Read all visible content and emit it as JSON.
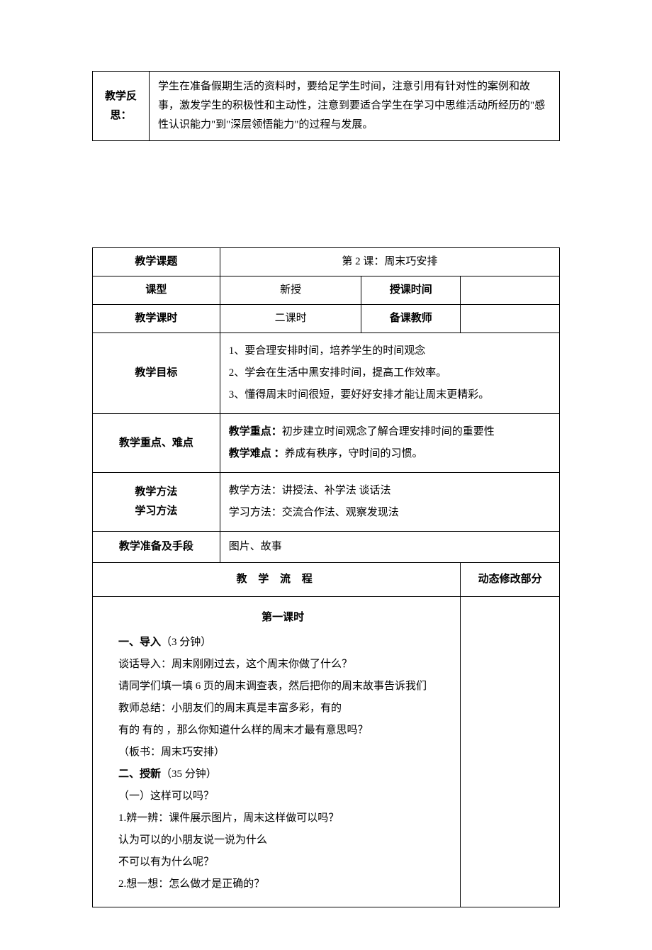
{
  "topTable": {
    "label": "教学反思：",
    "content": "学生在准备假期生活的资料时，要给足学生时间，注意引用有针对性的案例和故事，激发学生的积极性和主动性，注意到要适合学生在学习中思维活动所经历的\"感性认识能力\"到\"深层领悟能力\"的过程与发展。"
  },
  "mainTable": {
    "r1": {
      "label": "教学课题",
      "value": "第 2 课：周末巧安排"
    },
    "r2": {
      "label": "课型",
      "v1": "新授",
      "label2": "授课时间",
      "v2": ""
    },
    "r3": {
      "label": "教学课时",
      "v1": "二课时",
      "label2": "备课教师",
      "v2": ""
    },
    "goals": {
      "label": "教学目标",
      "l1": "1、要合理安排时间，培养学生的时间观念",
      "l2": "2、学会在生活中黑安排时间，提高工作效率。",
      "l3": "3、懂得周末时间很短，要好好安排才能让周末更精彩。"
    },
    "focus": {
      "label": "教学重点、难点",
      "l1a": "教学重点：",
      "l1b": "初步建立时间观念了解合理安排时间的重要性",
      "l2a": "教学难点 ：",
      "l2b": "养成有秩序，守时间的习惯。"
    },
    "methods": {
      "label1": "教学方法",
      "label2": "学习方法",
      "l1": "教学方法：讲授法、补学法  谈话法",
      "l2": "学习方法：交流合作法、观察发现法"
    },
    "prep": {
      "label": "教学准备及手段",
      "value": "图片、故事"
    },
    "flowHeader": {
      "left": "教 学 流 程",
      "right": "动态修改部分"
    },
    "flow": {
      "title": "第一课时",
      "p1a": "一、导入",
      "p1b": "（3 分钟）",
      "p2": "谈话导入：周末刚刚过去，这个周末你做了什么？",
      "p3": "请同学们填一填 6 页的周末调查表，然后把你的周末故事告诉我们",
      "p4": "教师总结：小朋友们的周末真是丰富多彩，有的",
      "p5": "有的   有的  ，那么你知道什么样的周末才最有意思吗？",
      "p6": "（板书：周末巧安排）",
      "p7a": "二、授新",
      "p7b": "（35 分钟）",
      "p8": "（一）这样可以吗？",
      "p9": "1.辨一辨：课件展示图片，周末这样做可以吗？",
      "p10": "认为可以的小朋友说一说为什么",
      "p11": "不可以有为什么呢？",
      "p12": "2.想一想：怎么做才是正确的？"
    }
  }
}
